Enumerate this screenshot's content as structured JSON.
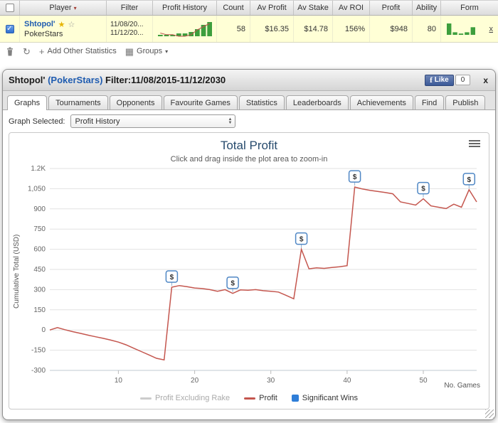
{
  "table": {
    "headers": [
      "Player",
      "Filter",
      "Profit History",
      "Count",
      "Av Profit",
      "Av Stake",
      "Av ROI",
      "Profit",
      "Ability",
      "Form"
    ],
    "row": {
      "player_name": "Shtopol'",
      "site": "PokerStars",
      "filter_line1": "11/08/20...",
      "filter_line2": "11/12/20...",
      "count": "58",
      "av_profit": "$16.35",
      "av_stake": "$14.78",
      "av_roi": "156%",
      "profit": "$948",
      "ability": "80",
      "remove_label": "x",
      "profit_history_spark": {
        "bars": [
          1,
          1,
          1,
          2,
          2,
          3,
          5,
          8,
          10
        ],
        "line": [
          -1,
          -2,
          -2,
          -3,
          -3,
          -2,
          1,
          3,
          5
        ]
      },
      "form_spark": {
        "bars": [
          9,
          2,
          1,
          2,
          6
        ]
      }
    },
    "toolbar": {
      "add_stats_label": "Add Other Statistics",
      "groups_label": "Groups"
    }
  },
  "panel": {
    "title_player": "Shtopol' ",
    "title_site": "(PokerStars)",
    "title_rest": " Filter:11/08/2015-11/12/2030",
    "like_label": "Like",
    "like_count": "0",
    "close_label": "x",
    "tabs": [
      "Graphs",
      "Tournaments",
      "Opponents",
      "Favourite Games",
      "Statistics",
      "Leaderboards",
      "Achievements",
      "Find",
      "Publish"
    ],
    "graph_selected_label": "Graph Selected:",
    "graph_selected_value": "Profit History"
  },
  "chart_data": {
    "type": "line",
    "title": "Total Profit",
    "subtitle": "Click and drag inside the plot area to zoom-in",
    "ylabel": "Cumulative Total (USD)",
    "xlabel": "No. Games",
    "xlim": [
      1,
      57
    ],
    "ylim": [
      -300,
      1200
    ],
    "yticks": [
      -300,
      -150,
      0,
      150,
      300,
      450,
      600,
      750,
      900,
      1050,
      1200
    ],
    "ytick_labels": [
      "-300",
      "-150",
      "0",
      "150",
      "300",
      "450",
      "600",
      "750",
      "900",
      "1,050",
      "1.2K"
    ],
    "xticks": [
      10,
      20,
      30,
      40,
      50
    ],
    "grid": true,
    "legend_position": "bottom",
    "series": [
      {
        "name": "Profit Excluding Rake",
        "color": "#cccccc",
        "points": []
      },
      {
        "name": "Profit",
        "color": "#c4564e",
        "points": [
          [
            1,
            0
          ],
          [
            2,
            18
          ],
          [
            3,
            2
          ],
          [
            4,
            -12
          ],
          [
            5,
            -25
          ],
          [
            6,
            -38
          ],
          [
            7,
            -50
          ],
          [
            8,
            -62
          ],
          [
            9,
            -75
          ],
          [
            10,
            -90
          ],
          [
            11,
            -110
          ],
          [
            12,
            -135
          ],
          [
            13,
            -160
          ],
          [
            14,
            -185
          ],
          [
            15,
            -210
          ],
          [
            16,
            -222
          ],
          [
            17,
            318
          ],
          [
            18,
            330
          ],
          [
            19,
            322
          ],
          [
            20,
            312
          ],
          [
            21,
            308
          ],
          [
            22,
            300
          ],
          [
            23,
            288
          ],
          [
            24,
            300
          ],
          [
            25,
            272
          ],
          [
            26,
            298
          ],
          [
            27,
            295
          ],
          [
            28,
            300
          ],
          [
            29,
            292
          ],
          [
            30,
            288
          ],
          [
            31,
            282
          ],
          [
            32,
            258
          ],
          [
            33,
            232
          ],
          [
            34,
            600
          ],
          [
            35,
            455
          ],
          [
            36,
            462
          ],
          [
            37,
            458
          ],
          [
            38,
            465
          ],
          [
            39,
            470
          ],
          [
            40,
            478
          ],
          [
            41,
            1062
          ],
          [
            42,
            1048
          ],
          [
            43,
            1038
          ],
          [
            44,
            1030
          ],
          [
            45,
            1022
          ],
          [
            46,
            1012
          ],
          [
            47,
            952
          ],
          [
            48,
            940
          ],
          [
            49,
            928
          ],
          [
            50,
            975
          ],
          [
            51,
            922
          ],
          [
            52,
            912
          ],
          [
            53,
            902
          ],
          [
            54,
            935
          ],
          [
            55,
            912
          ],
          [
            56,
            1042
          ],
          [
            57,
            952
          ]
        ]
      }
    ],
    "significant_wins": [
      [
        17,
        318
      ],
      [
        25,
        272
      ],
      [
        34,
        600
      ],
      [
        41,
        1062
      ],
      [
        50,
        975
      ],
      [
        56,
        1042
      ]
    ],
    "significant_win_symbol": "$",
    "significant_win_color": "#4f87c5",
    "legend": [
      {
        "label": "Profit Excluding Rake",
        "color": "#cccccc",
        "type": "line",
        "muted": true
      },
      {
        "label": "Profit",
        "color": "#c4564e",
        "type": "line",
        "muted": false
      },
      {
        "label": "Significant Wins",
        "color": "#2f7ed8",
        "type": "square",
        "muted": false
      }
    ]
  }
}
